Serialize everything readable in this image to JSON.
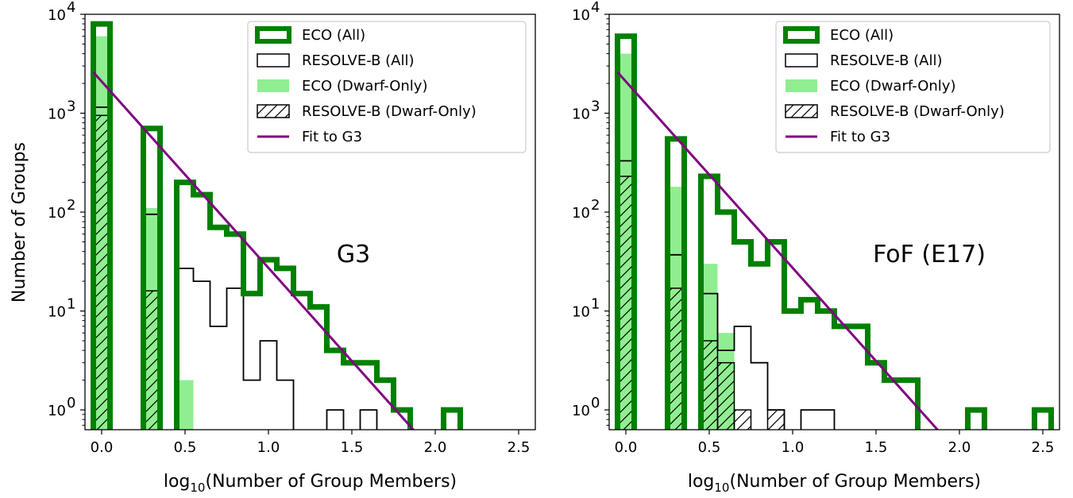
{
  "figure": {
    "ylabel": "Number of Groups",
    "xlabel_prefix": "log",
    "xlabel_sub": "10",
    "xlabel_rest": "(Number of Group Members)"
  },
  "colors": {
    "eco_all": "#008000",
    "eco_dwarf": "#90ee90",
    "resolve": "#000000",
    "fit": "#800080"
  },
  "legend": [
    {
      "key": "eco_all",
      "label": "ECO (All)"
    },
    {
      "key": "resolve_all",
      "label": "RESOLVE-B (All)"
    },
    {
      "key": "eco_dwarf",
      "label": "ECO (Dwarf-Only)"
    },
    {
      "key": "resolve_dwarf",
      "label": "RESOLVE-B (Dwarf-Only)"
    },
    {
      "key": "fit",
      "label": "Fit to G3"
    }
  ],
  "chart_data": [
    {
      "type": "histogram",
      "panel_label": "G3",
      "xlim": [
        -0.1,
        2.6
      ],
      "ylim_log10": [
        -0.2,
        4
      ],
      "yscale": "log",
      "x_ticks": [
        "0.0",
        "0.5",
        "1.0",
        "1.5",
        "2.0",
        "2.5"
      ],
      "x_tick_values": [
        0,
        0.5,
        1.0,
        1.5,
        2.0,
        2.5
      ],
      "y_ticks": [
        0,
        1,
        2,
        3,
        4
      ],
      "bin_width": 0.1,
      "eco_all": [
        [
          -0.05,
          0.05,
          8000
        ],
        [
          0.25,
          0.35,
          700
        ],
        [
          0.45,
          0.55,
          200
        ],
        [
          0.55,
          0.65,
          150
        ],
        [
          0.65,
          0.75,
          70
        ],
        [
          0.75,
          0.85,
          60
        ],
        [
          0.85,
          0.95,
          15
        ],
        [
          0.95,
          1.05,
          33
        ],
        [
          1.05,
          1.15,
          27
        ],
        [
          1.15,
          1.25,
          15
        ],
        [
          1.25,
          1.35,
          11
        ],
        [
          1.35,
          1.45,
          4
        ],
        [
          1.45,
          1.65,
          3
        ],
        [
          1.65,
          1.75,
          2
        ],
        [
          1.75,
          1.85,
          1
        ],
        [
          2.05,
          2.15,
          1
        ]
      ],
      "resolve_all": [
        [
          -0.05,
          0.05,
          1150
        ],
        [
          0.25,
          0.35,
          95
        ],
        [
          0.45,
          0.55,
          27
        ],
        [
          0.55,
          0.65,
          20
        ],
        [
          0.65,
          0.75,
          7
        ],
        [
          0.75,
          0.85,
          17
        ],
        [
          0.85,
          0.95,
          2
        ],
        [
          0.95,
          1.05,
          5
        ],
        [
          1.05,
          1.15,
          2
        ],
        [
          1.35,
          1.45,
          1
        ],
        [
          1.55,
          1.65,
          1
        ]
      ],
      "eco_dwarf": [
        [
          -0.05,
          0.05,
          6000
        ],
        [
          0.25,
          0.35,
          110
        ],
        [
          0.45,
          0.55,
          2
        ]
      ],
      "resolve_dwarf": [
        [
          -0.05,
          0.05,
          950
        ],
        [
          0.25,
          0.35,
          16
        ]
      ],
      "fit_line": {
        "x": [
          -0.05,
          1.88
        ],
        "y": [
          2600,
          0.6
        ]
      }
    },
    {
      "type": "histogram",
      "panel_label": "FoF (E17)",
      "xlim": [
        -0.1,
        2.6
      ],
      "ylim_log10": [
        -0.2,
        4
      ],
      "yscale": "log",
      "x_ticks": [
        "0.0",
        "0.5",
        "1.0",
        "1.5",
        "2.0",
        "2.5"
      ],
      "x_tick_values": [
        0,
        0.5,
        1.0,
        1.5,
        2.0,
        2.5
      ],
      "y_ticks": [
        0,
        1,
        2,
        3,
        4
      ],
      "bin_width": 0.1,
      "eco_all": [
        [
          -0.05,
          0.05,
          6000
        ],
        [
          0.25,
          0.35,
          550
        ],
        [
          0.45,
          0.55,
          230
        ],
        [
          0.55,
          0.65,
          100
        ],
        [
          0.65,
          0.75,
          50
        ],
        [
          0.75,
          0.85,
          30
        ],
        [
          0.85,
          0.95,
          50
        ],
        [
          0.95,
          1.05,
          10
        ],
        [
          1.05,
          1.15,
          13
        ],
        [
          1.15,
          1.25,
          10
        ],
        [
          1.25,
          1.35,
          7
        ],
        [
          1.35,
          1.45,
          7
        ],
        [
          1.45,
          1.55,
          3
        ],
        [
          1.55,
          1.65,
          2
        ],
        [
          1.65,
          1.75,
          2
        ],
        [
          2.05,
          2.15,
          1
        ],
        [
          2.45,
          2.55,
          1
        ]
      ],
      "resolve_all": [
        [
          -0.05,
          0.05,
          330
        ],
        [
          0.25,
          0.35,
          37
        ],
        [
          0.45,
          0.55,
          15
        ],
        [
          0.55,
          0.65,
          4
        ],
        [
          0.65,
          0.75,
          7
        ],
        [
          0.75,
          0.85,
          3
        ],
        [
          0.85,
          0.95,
          1
        ],
        [
          1.05,
          1.25,
          1
        ]
      ],
      "eco_dwarf": [
        [
          -0.05,
          0.05,
          4000
        ],
        [
          0.25,
          0.35,
          180
        ],
        [
          0.45,
          0.55,
          30
        ],
        [
          0.55,
          0.65,
          6
        ]
      ],
      "resolve_dwarf": [
        [
          -0.05,
          0.05,
          230
        ],
        [
          0.25,
          0.35,
          17
        ],
        [
          0.45,
          0.55,
          5
        ],
        [
          0.55,
          0.65,
          3
        ],
        [
          0.65,
          0.75,
          1
        ],
        [
          0.85,
          0.95,
          1
        ]
      ],
      "fit_line": {
        "x": [
          -0.05,
          1.88
        ],
        "y": [
          2600,
          0.6
        ]
      }
    }
  ]
}
